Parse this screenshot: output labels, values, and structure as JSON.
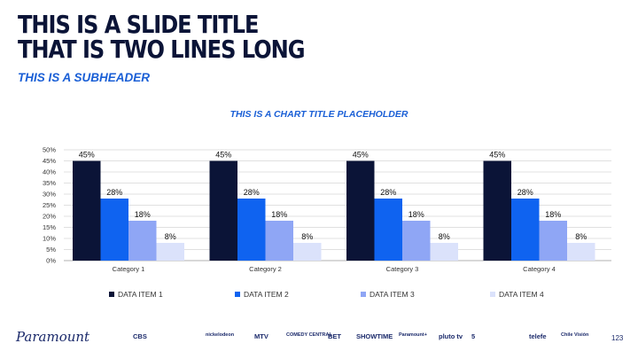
{
  "slide": {
    "title_lines": [
      "THIS IS A SLIDE TITLE",
      "THAT IS TWO LINES LONG"
    ],
    "subheader": "THIS IS A SUBHEADER",
    "page_number": "123"
  },
  "colors": {
    "title": "#0b1437",
    "accent": "#1a5fd6",
    "series": [
      "#0b1437",
      "#0f63f0",
      "#8fa6f5",
      "#dbe2fb"
    ]
  },
  "chart_data": {
    "type": "bar",
    "title": "THIS IS A CHART TITLE PLACEHOLDER",
    "categories": [
      "Category 1",
      "Category 2",
      "Category 3",
      "Category 4"
    ],
    "series": [
      {
        "name": "DATA ITEM 1",
        "values": [
          45,
          45,
          45,
          45
        ]
      },
      {
        "name": "DATA ITEM 2",
        "values": [
          28,
          28,
          28,
          28
        ]
      },
      {
        "name": "DATA ITEM 3",
        "values": [
          18,
          18,
          18,
          18
        ]
      },
      {
        "name": "DATA ITEM 4",
        "values": [
          8,
          8,
          8,
          8
        ]
      }
    ],
    "ylim": [
      0,
      50
    ],
    "y_ticks": [
      "0%",
      "5%",
      "10%",
      "15%",
      "20%",
      "25%",
      "30%",
      "35%",
      "40%",
      "45%",
      "50%"
    ],
    "value_suffix": "%",
    "grid": true,
    "legend_position": "bottom"
  },
  "footer": {
    "logo": "Paramount",
    "brands": [
      "CBS",
      "nickelodeon",
      "MTV",
      "COMEDY CENTRAL",
      "BET",
      "SHOWTIME",
      "Paramount+",
      "pluto tv",
      "5",
      "telefe",
      "Chile Visión"
    ]
  }
}
